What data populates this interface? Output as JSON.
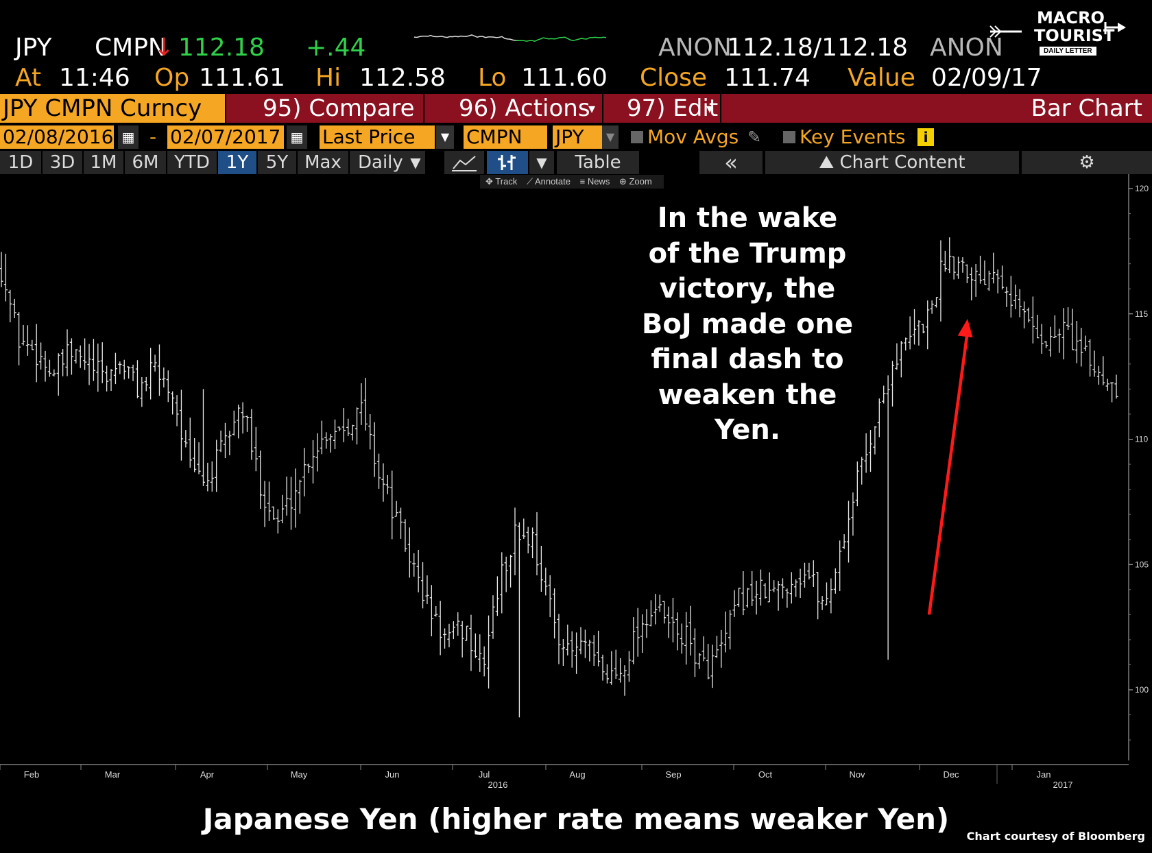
{
  "header": {
    "ticker": "JPY",
    "source": "CMPN",
    "arrow": "↓",
    "last": "112.18",
    "change": "+.44",
    "bid_src": "ANON",
    "bid_ask": "112.18/112.18",
    "ask_src": "ANON",
    "at_label": "At",
    "at_value": "11:46",
    "op_label": "Op",
    "op_value": "111.61",
    "hi_label": "Hi",
    "hi_value": "112.58",
    "lo_label": "Lo",
    "lo_value": "111.60",
    "close_label": "Close",
    "close_value": "111.74",
    "value_label": "Value",
    "value_date": "02/09/17"
  },
  "logo": {
    "line1": "MACRO",
    "line2": "TOURIST",
    "line3": "DAILY LETTER"
  },
  "band": {
    "security": "JPY CMPN Curncy",
    "compare": "95) Compare",
    "actions": "96) Actions",
    "edit": "97) Edit",
    "chart_type": "Bar Chart"
  },
  "controls": {
    "start_date": "02/08/2016",
    "dash": "-",
    "end_date": "02/07/2017",
    "field": "Last Price",
    "source": "CMPN",
    "currency": "JPY",
    "mov_avgs": "Mov Avgs",
    "key_events": "Key Events",
    "info": "i"
  },
  "periods": [
    "1D",
    "3D",
    "1M",
    "6M",
    "YTD",
    "1Y",
    "5Y",
    "Max"
  ],
  "selected_period": "1Y",
  "frequency": "Daily",
  "buttons": {
    "table": "Table",
    "collapse": "«",
    "chart_content": "Chart Content"
  },
  "tools": [
    "Track",
    "Annotate",
    "News",
    "Zoom"
  ],
  "annotation": [
    "In the wake",
    "of the Trump",
    "victory, the",
    "BoJ made one",
    "final dash to",
    "weaken the",
    "Yen."
  ],
  "footer": {
    "title": "Japanese Yen (higher rate means weaker Yen)",
    "credit": "Chart courtesy of Bloomberg"
  },
  "colors": {
    "amber": "#f5a623",
    "band_red": "#8b1020",
    "up": "#2fd14a",
    "arrow": "#ff1a1a"
  },
  "chart_data": {
    "type": "bar",
    "title": "Japanese Yen (higher rate means weaker Yen)",
    "series": [
      {
        "name": "JPY CMPN Curncy",
        "type": "ohlc"
      }
    ],
    "x_ticks": [
      "Feb",
      "Mar",
      "Apr",
      "May",
      "Jun",
      "Jul",
      "Aug",
      "Sep",
      "Oct",
      "Nov",
      "Dec",
      "Jan"
    ],
    "x_year_labels": [
      "2016",
      "2017"
    ],
    "y_ticks": [
      "120",
      "115",
      "110",
      "105",
      "100"
    ],
    "ylim": [
      97,
      120.5
    ],
    "y_axis_side": "right",
    "grid": false,
    "weekly_closes": [
      116.8,
      114.0,
      113.5,
      112.6,
      113.4,
      113.0,
      112.4,
      113.1,
      112.0,
      112.8,
      111.8,
      108.8,
      108.3,
      109.8,
      111.4,
      108.4,
      106.6,
      107.8,
      109.4,
      110.3,
      110.6,
      111.2,
      108.7,
      106.8,
      104.9,
      103.1,
      101.9,
      102.5,
      100.8,
      104.2,
      106.3,
      106.0,
      103.2,
      101.4,
      101.8,
      100.6,
      100.6,
      102.3,
      103.3,
      102.5,
      102.0,
      100.8,
      101.6,
      103.6,
      103.9,
      103.8,
      104.4,
      104.7,
      103.3,
      105.8,
      108.7,
      110.8,
      113.1,
      114.0,
      114.9,
      117.2,
      117.1,
      116.4,
      117.0,
      115.6,
      114.6,
      113.8,
      114.5,
      113.4,
      112.6,
      112.2
    ],
    "annotation_arrow": {
      "from": {
        "month": "Nov",
        "value": 103
      },
      "to": {
        "month": "Dec",
        "value": 114.8
      }
    }
  }
}
